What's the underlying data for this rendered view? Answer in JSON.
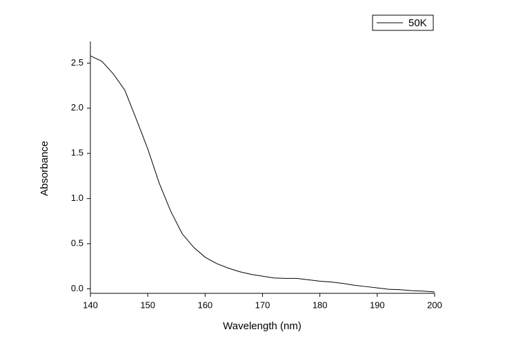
{
  "chart_data": {
    "type": "line",
    "x_label": "Wavelength (nm)",
    "y_label": "Absorbance",
    "x": [
      140,
      142,
      144,
      146,
      148,
      150,
      152,
      154,
      156,
      158,
      160,
      162,
      164,
      166,
      168,
      170,
      172,
      174,
      176,
      178,
      180,
      182,
      184,
      186,
      188,
      190,
      192,
      194,
      196,
      198,
      200
    ],
    "series": [
      {
        "name": "50K",
        "color": "#000000",
        "values": [
          2.58,
          2.52,
          2.38,
          2.2,
          1.88,
          1.55,
          1.17,
          0.86,
          0.61,
          0.46,
          0.35,
          0.28,
          0.23,
          0.19,
          0.16,
          0.14,
          0.12,
          0.115,
          0.115,
          0.1,
          0.085,
          0.075,
          0.06,
          0.04,
          0.025,
          0.01,
          -0.005,
          -0.01,
          -0.02,
          -0.025,
          -0.035
        ]
      }
    ],
    "xlim": [
      140,
      200
    ],
    "xticks": [
      140,
      150,
      160,
      170,
      180,
      190,
      200
    ],
    "ylim": [
      -0.05,
      2.74
    ],
    "yticks": [
      {
        "value": 0,
        "label": "0.0"
      },
      0.5,
      {
        "value": 1,
        "label": "1.0"
      },
      1.5,
      {
        "value": 2,
        "label": "2.0"
      },
      2.5
    ],
    "legend": "top-right",
    "grid": false
  }
}
